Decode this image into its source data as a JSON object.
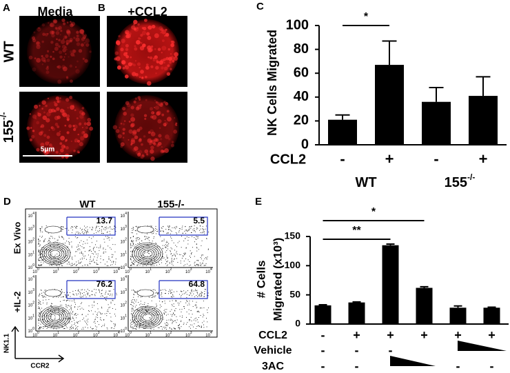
{
  "panel_labels": [
    "A",
    "B",
    "C",
    "D",
    "E"
  ],
  "panel_ab": {
    "columns": [
      "Media",
      "+CCL2"
    ],
    "rows": [
      {
        "name": "WT"
      },
      {
        "name": "155",
        "sup": "-/-"
      }
    ],
    "scale_bar": "5μm"
  },
  "panel_d": {
    "columns": [
      "WT",
      "155-/-"
    ],
    "rows": [
      "Ex Vivo",
      "+IL-2"
    ],
    "gates": [
      [
        13.7,
        5.5
      ],
      [
        76.2,
        64.8
      ]
    ],
    "y_label": "NK1.1",
    "x_label": "CCR2",
    "tick_base": "10",
    "tick_exponents": [
      "0",
      "1",
      "2",
      "3",
      "4"
    ]
  },
  "chart_data": [
    {
      "type": "bar",
      "y_label": [
        "NK Cells Migrated"
      ],
      "values": [
        21,
        67,
        36,
        41
      ],
      "errors": [
        4,
        20,
        12,
        16
      ],
      "color": "#000000",
      "ylim": [
        0,
        100
      ],
      "yticks": [
        0,
        20,
        40,
        60,
        80,
        100
      ],
      "significance": [
        "*"
      ],
      "condition_rows": [
        {
          "name": "CCL2",
          "values": [
            "-",
            "+",
            "-",
            "+"
          ]
        }
      ],
      "groups": [
        {
          "name": "WT"
        },
        {
          "name": "155",
          "sup": "-/-"
        }
      ]
    },
    {
      "type": "bar",
      "y_label": [
        "# Cells",
        "Migrated (x10³)"
      ],
      "values": [
        32,
        37,
        135,
        62,
        28,
        28
      ],
      "errors": [
        1,
        1,
        2,
        2,
        3,
        1
      ],
      "color": "#000000",
      "ylim": [
        0,
        150
      ],
      "yticks": [
        0,
        50,
        100,
        150
      ],
      "significance": [
        "*",
        "**"
      ],
      "condition_rows": [
        {
          "name": "CCL2",
          "values": [
            "-",
            "+",
            "+",
            "+",
            "+",
            "+"
          ]
        },
        {
          "name": "Vehicle",
          "values": [
            "-",
            "-",
            "-",
            null,
            null,
            null
          ]
        },
        {
          "name": "3AC",
          "values": [
            "-",
            "-",
            null,
            null,
            "-",
            "-"
          ]
        }
      ]
    }
  ]
}
